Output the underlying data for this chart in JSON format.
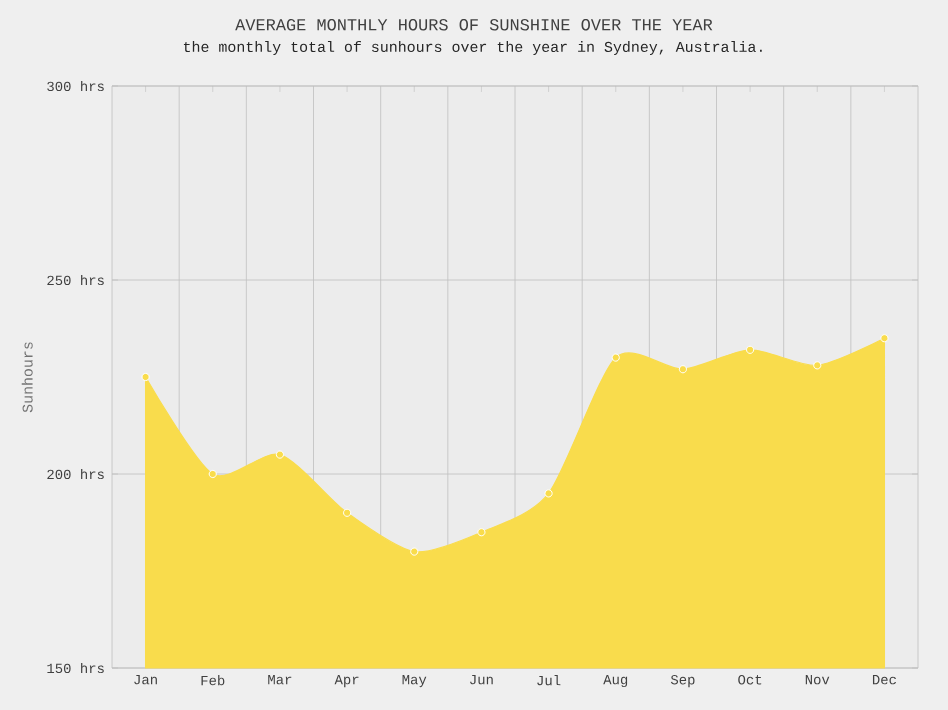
{
  "chart_data": {
    "type": "area",
    "title": "AVERAGE MONTHLY HOURS OF SUNSHINE OVER THE YEAR",
    "subtitle": "the monthly total of sunhours over the year in Sydney, Australia.",
    "ylabel": "Sunhours",
    "categories": [
      "Jan",
      "Feb",
      "Mar",
      "Apr",
      "May",
      "Jun",
      "Jul",
      "Aug",
      "Sep",
      "Oct",
      "Nov",
      "Dec"
    ],
    "values": [
      225,
      200,
      205,
      190,
      180,
      185,
      195,
      230,
      227,
      232,
      228,
      235
    ],
    "color": "#f9dc4c",
    "ylim": [
      150,
      300
    ],
    "yticks": [
      {
        "value": 150,
        "label": "150 hrs"
      },
      {
        "value": 200,
        "label": "200 hrs"
      },
      {
        "value": 250,
        "label": "250 hrs"
      },
      {
        "value": 300,
        "label": "300 hrs"
      }
    ],
    "grid": true,
    "marker": "circle"
  }
}
